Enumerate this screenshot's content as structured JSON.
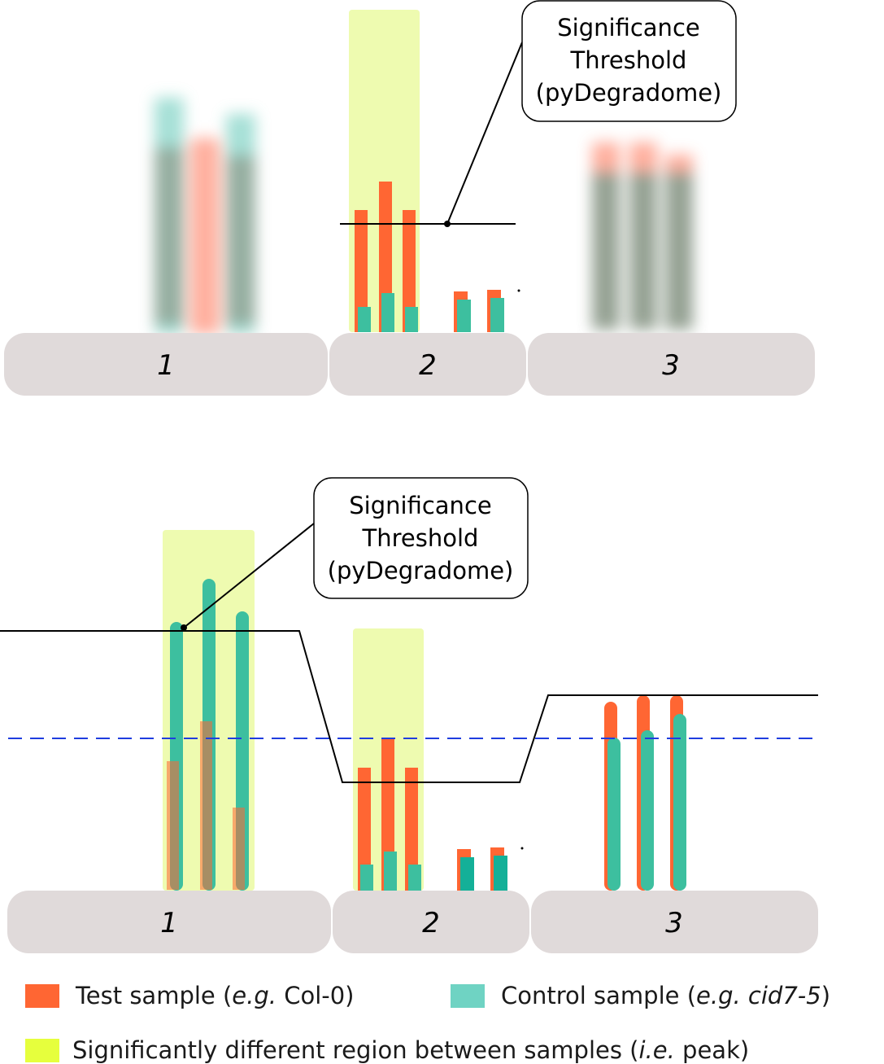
{
  "colors": {
    "test": "#ff6633",
    "control": "#3dbf9f",
    "control_dark": "#14b098",
    "peak": "#eefbb0",
    "legend_peak": "#e6ff3d",
    "legend_control": "#6fd3c3",
    "segment": "#e0dada",
    "threshold": "#000000",
    "dashed": "#1f3ddf"
  },
  "top_panel": {
    "segments": [
      "1",
      "2",
      "3"
    ],
    "callout": [
      "Significance",
      "Threshold",
      "(pyDegradome)"
    ]
  },
  "bottom_panel": {
    "segments": [
      "1",
      "2",
      "3"
    ],
    "callout": [
      "Significance",
      "Threshold",
      "(pyDegradome)"
    ]
  },
  "legend": {
    "test": {
      "text": "Test sample (",
      "em": "e.g.",
      "tail": " Col-0)"
    },
    "control": {
      "text": "Control sample (",
      "em": "e.g. cid7-5",
      "tail": ")"
    },
    "peak": {
      "text": "Significantly different region between samples (",
      "em": "i.e.",
      "tail": " peak)"
    }
  }
}
